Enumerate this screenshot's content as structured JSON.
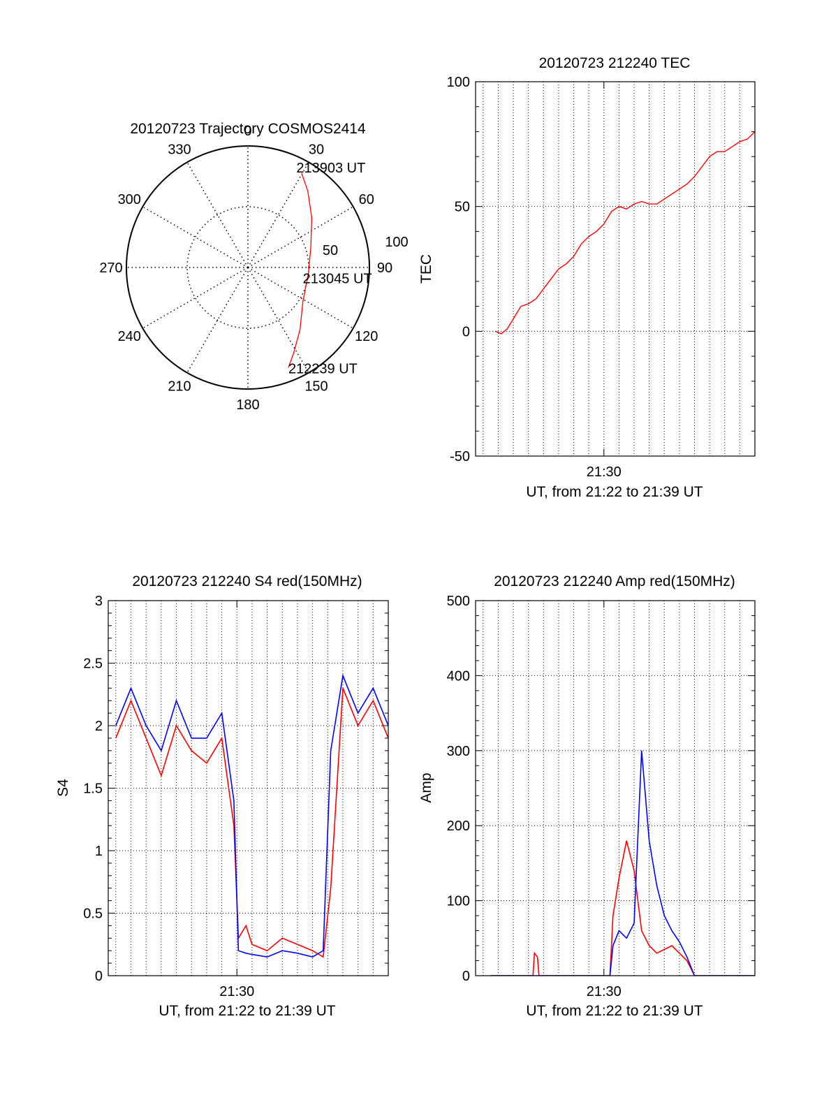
{
  "chart_data": [
    {
      "type": "polar",
      "title": "20120723 Trajectory COSMOS2414",
      "azimuth_labels": [
        "0",
        "30",
        "60",
        "90",
        "120",
        "150",
        "180",
        "210",
        "240",
        "270",
        "300",
        "330"
      ],
      "radial_labels": [
        "50",
        "100"
      ],
      "radial_range": [
        0,
        100
      ],
      "grid": true,
      "line_color": "#ff0000",
      "series": [
        {
          "points": [
            {
              "az": 158,
              "el": 10,
              "label": "212239 UT"
            },
            {
              "az": 152,
              "el": 18
            },
            {
              "az": 140,
              "el": 30
            },
            {
              "az": 122,
              "el": 42
            },
            {
              "az": 95,
              "el": 45,
              "label": "213045 UT"
            },
            {
              "az": 72,
              "el": 41
            },
            {
              "az": 52,
              "el": 30
            },
            {
              "az": 38,
              "el": 18
            },
            {
              "az": 30,
              "el": 10,
              "label": "213903 UT"
            }
          ]
        }
      ]
    },
    {
      "type": "line",
      "title": "20120723 212240 TEC",
      "xlabel": "UT, from 21:22 to 21:39 UT",
      "ylabel": "TEC",
      "xlim": [
        "21:21.5",
        "21:39.5"
      ],
      "ylim": [
        -50,
        100
      ],
      "yticks": [
        "-50",
        "0",
        "50",
        "100"
      ],
      "xticks": [
        "21:30"
      ],
      "grid": true,
      "series": [
        {
          "color": "#ff0000",
          "x_minutes": [
            0.8,
            1.2,
            1.6,
            2.0,
            2.5,
            3.0,
            3.5,
            4.0,
            4.5,
            5.0,
            5.5,
            6.0,
            6.5,
            7.0,
            7.5,
            8.0,
            8.5,
            9.0,
            9.5,
            10.0,
            10.5,
            11.0,
            11.5,
            12.0,
            12.5,
            13.0,
            13.5,
            14.0,
            14.5,
            15.0,
            15.5,
            16.0,
            16.5,
            17.0,
            17.5,
            18.0
          ],
          "values": [
            0,
            -1,
            1,
            5,
            10,
            11,
            13,
            17,
            21,
            25,
            27,
            30,
            35,
            38,
            40,
            43,
            48,
            50,
            49,
            51,
            52,
            51,
            51,
            53,
            55,
            57,
            59,
            62,
            66,
            70,
            72,
            72,
            74,
            76,
            77,
            80
          ]
        }
      ]
    },
    {
      "type": "line",
      "title": "20120723 212240 S4 red(150MHz)",
      "xlabel": "UT, from 21:22 to 21:39 UT",
      "ylabel": "S4",
      "xlim": [
        "21:21.5",
        "21:39.5"
      ],
      "ylim": [
        0,
        3
      ],
      "yticks": [
        "0",
        "0.5",
        "1",
        "1.5",
        "2",
        "2.5",
        "3"
      ],
      "xticks": [
        "21:30"
      ],
      "grid": true,
      "series": [
        {
          "color": "#ff0000",
          "x_minutes": [
            0,
            1,
            2,
            3,
            4,
            5,
            6,
            7,
            7.8,
            8.1,
            8.6,
            9,
            10,
            11,
            12,
            13,
            13.7,
            14.2,
            15,
            16,
            17,
            18
          ],
          "values": [
            1.9,
            2.2,
            1.9,
            1.6,
            2.0,
            1.8,
            1.7,
            1.9,
            1.2,
            0.3,
            0.4,
            0.25,
            0.2,
            0.3,
            0.25,
            0.2,
            0.15,
            0.7,
            2.3,
            2.0,
            2.2,
            1.9
          ]
        },
        {
          "color": "#0000ff",
          "x_minutes": [
            0,
            1,
            2,
            3,
            4,
            5,
            6,
            7,
            7.8,
            8.1,
            8.6,
            9,
            10,
            11,
            12,
            13,
            13.7,
            14.2,
            15,
            16,
            17,
            18
          ],
          "values": [
            2.0,
            2.3,
            2.0,
            1.8,
            2.2,
            1.9,
            1.9,
            2.1,
            1.4,
            0.2,
            0.18,
            0.17,
            0.15,
            0.2,
            0.18,
            0.15,
            0.2,
            1.8,
            2.4,
            2.1,
            2.3,
            2.0
          ]
        }
      ]
    },
    {
      "type": "line",
      "title": "20120723 212240 Amp red(150MHz)",
      "xlabel": "UT, from 21:22 to 21:39 UT",
      "ylabel": "Amp",
      "xlim": [
        "21:21.5",
        "21:39.5"
      ],
      "ylim": [
        0,
        500
      ],
      "yticks": [
        "0",
        "100",
        "200",
        "300",
        "400",
        "500"
      ],
      "xticks": [
        "21:30"
      ],
      "grid": true,
      "series": [
        {
          "color": "#ff0000",
          "x_minutes": [
            0.5,
            3.3,
            3.4,
            3.6,
            3.7,
            8.4,
            8.6,
            9.0,
            9.5,
            10.0,
            10.5,
            11.0,
            11.5,
            12.0,
            12.5,
            13.0,
            13.5,
            14.0,
            18.0
          ],
          "values": [
            0,
            0,
            30,
            25,
            0,
            0,
            80,
            130,
            180,
            140,
            60,
            40,
            30,
            35,
            40,
            30,
            20,
            0,
            0
          ]
        },
        {
          "color": "#0000ff",
          "x_minutes": [
            0.5,
            8.4,
            8.6,
            9.0,
            9.5,
            10.0,
            10.5,
            11.0,
            11.5,
            12.0,
            12.5,
            13.0,
            13.5,
            14.0,
            18.0
          ],
          "values": [
            0,
            0,
            40,
            60,
            50,
            70,
            300,
            180,
            120,
            80,
            60,
            45,
            25,
            0,
            0
          ]
        }
      ]
    }
  ]
}
